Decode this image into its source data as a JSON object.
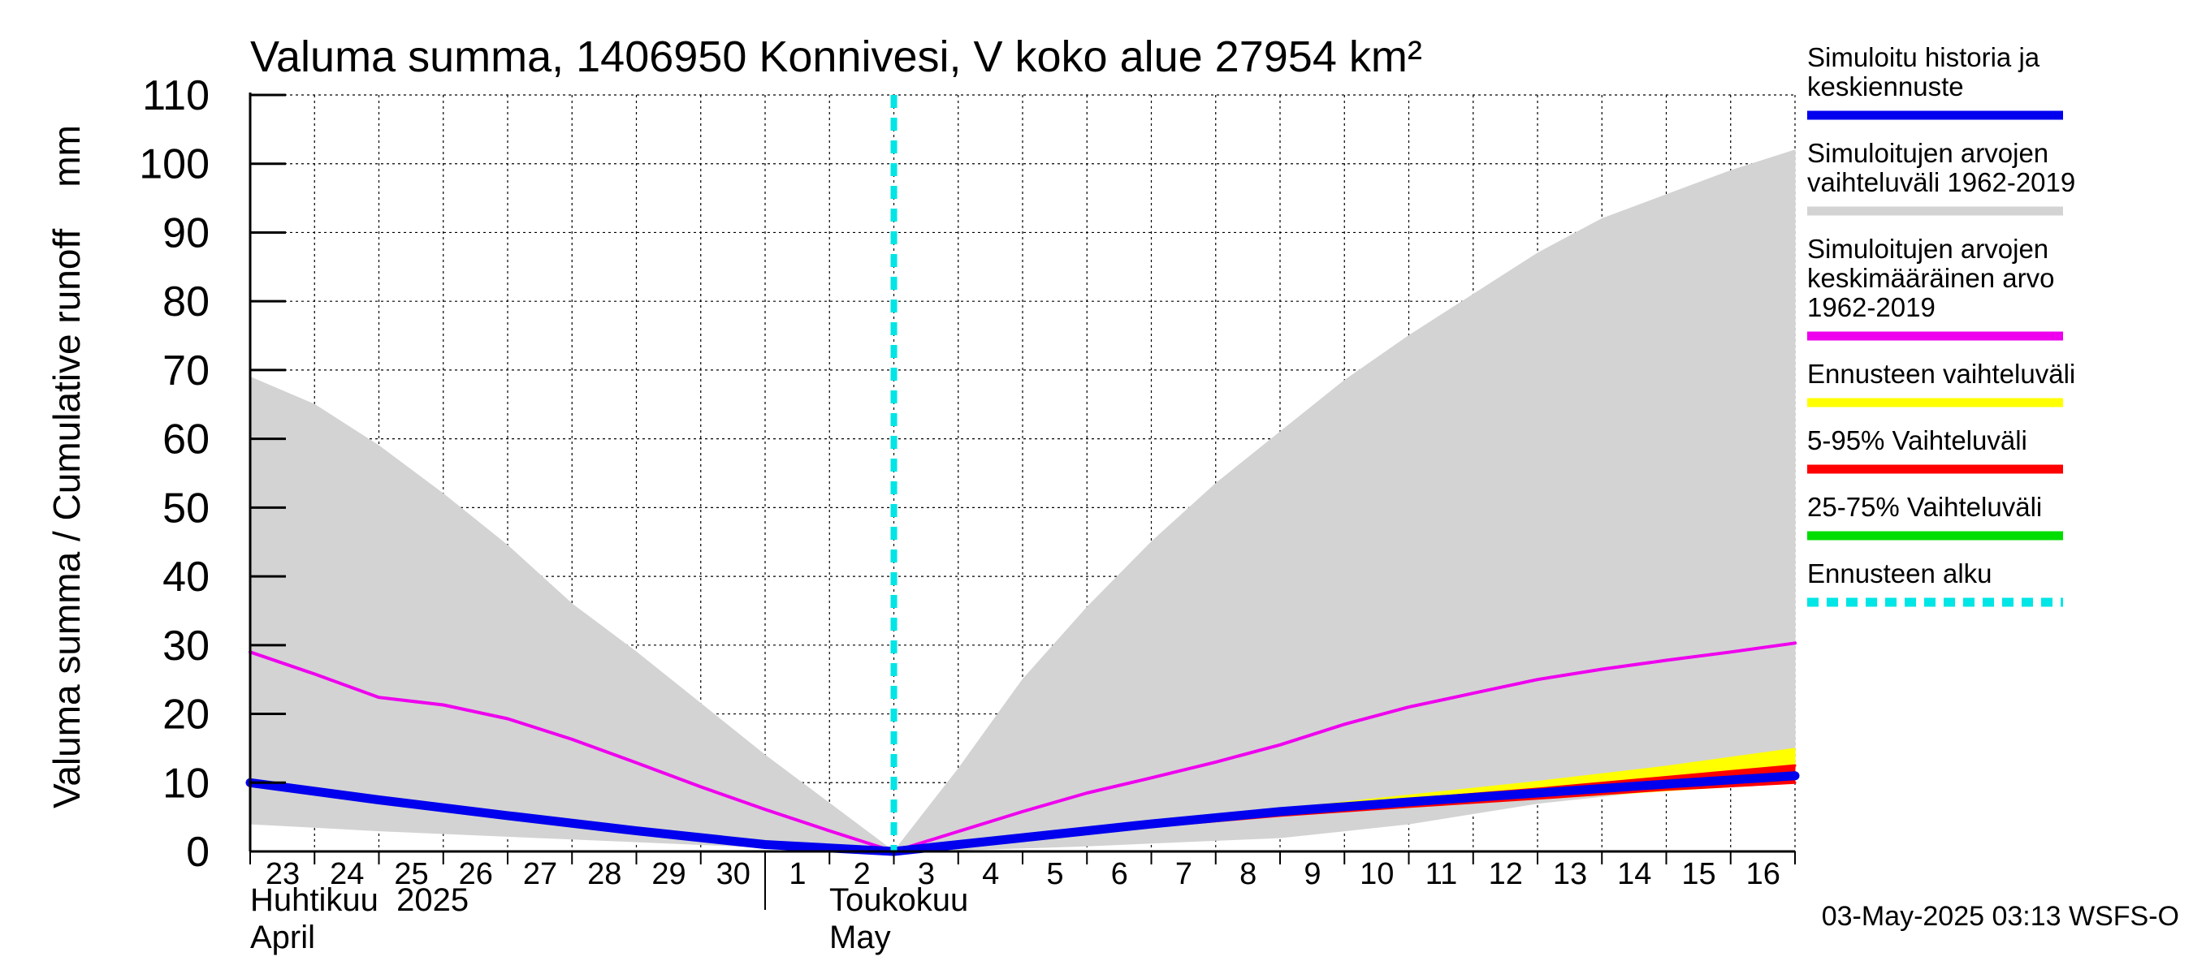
{
  "chart_data": {
    "type": "area",
    "title": "Valuma summa, 1406950 Konnivesi, V koko alue 27954 km²",
    "ylabel": "Valuma summa / Cumulative runoff    mm",
    "ylim": [
      0,
      110
    ],
    "yticks": [
      0,
      10,
      20,
      30,
      40,
      50,
      60,
      70,
      80,
      90,
      100,
      110
    ],
    "grid": true,
    "legend_position": "right",
    "x_tick_labels": [
      "23",
      "24",
      "25",
      "26",
      "27",
      "28",
      "29",
      "30",
      "1",
      "2",
      "3",
      "4",
      "5",
      "6",
      "7",
      "8",
      "9",
      "10",
      "11",
      "12",
      "13",
      "14",
      "15",
      "16"
    ],
    "month_labels": [
      {
        "line1": "Huhtikuu  2025",
        "line2": "April"
      },
      {
        "line1": "Toukokuu",
        "line2": "May"
      }
    ],
    "forecast_start": "2025-05-03",
    "series": [
      {
        "name": "Simuloitu historia ja keskiennuste",
        "color": "#0000ee",
        "x": [
          "2025-04-23",
          "2025-04-25",
          "2025-04-27",
          "2025-04-29",
          "2025-05-01",
          "2025-05-03",
          "2025-05-05",
          "2025-05-07",
          "2025-05-09",
          "2025-05-11",
          "2025-05-13",
          "2025-05-15",
          "2025-05-17"
        ],
        "y": [
          10,
          7.5,
          5.2,
          3.0,
          1.0,
          0,
          2.0,
          4.0,
          5.8,
          7.2,
          8.5,
          9.8,
          11.0
        ]
      },
      {
        "name": "Simuloitujen arvojen vaihteluväli 1962-2019",
        "color": "#d3d3d3",
        "x": [
          "2025-04-23",
          "2025-04-24",
          "2025-04-25",
          "2025-04-26",
          "2025-04-27",
          "2025-04-28",
          "2025-04-29",
          "2025-04-30",
          "2025-05-01",
          "2025-05-02",
          "2025-05-03",
          "2025-05-04",
          "2025-05-05",
          "2025-05-06",
          "2025-05-07",
          "2025-05-08",
          "2025-05-09",
          "2025-05-10",
          "2025-05-11",
          "2025-05-12",
          "2025-05-13",
          "2025-05-14",
          "2025-05-15",
          "2025-05-16",
          "2025-05-17"
        ],
        "y_low": [
          4,
          3.5,
          3.0,
          2.6,
          2.2,
          1.8,
          1.4,
          1.0,
          0.6,
          0.3,
          0,
          0.2,
          0.5,
          0.8,
          1.2,
          1.6,
          2.0,
          3.0,
          4.0,
          5.5,
          7.0,
          8.0,
          9.0,
          9.5,
          10.0
        ],
        "y_high": [
          69,
          65,
          59,
          52,
          44.5,
          36,
          29,
          21.5,
          14,
          7,
          0,
          12,
          25,
          35.5,
          45,
          53.5,
          61,
          68.5,
          75,
          81,
          87,
          92,
          95.5,
          99,
          102
        ]
      },
      {
        "name": "Simuloitujen arvojen keskimääräinen arvo 1962-2019",
        "color": "#ee00ee",
        "x": [
          "2025-04-23",
          "2025-04-24",
          "2025-04-25",
          "2025-04-26",
          "2025-04-27",
          "2025-04-28",
          "2025-04-29",
          "2025-04-30",
          "2025-05-01",
          "2025-05-02",
          "2025-05-03",
          "2025-05-04",
          "2025-05-05",
          "2025-05-06",
          "2025-05-07",
          "2025-05-08",
          "2025-05-09",
          "2025-05-10",
          "2025-05-11",
          "2025-05-12",
          "2025-05-13",
          "2025-05-14",
          "2025-05-15",
          "2025-05-16",
          "2025-05-17"
        ],
        "y": [
          29,
          25.8,
          22.4,
          21.3,
          19.3,
          16.3,
          12.9,
          9.4,
          6.1,
          3.0,
          0,
          2.9,
          5.8,
          8.5,
          10.7,
          13.0,
          15.5,
          18.5,
          21,
          23,
          25,
          26.5,
          27.8,
          29.0,
          30.3
        ]
      },
      {
        "name": "Ennusteen vaihteluväli",
        "color": "#ffff00",
        "x": [
          "2025-05-03",
          "2025-05-05",
          "2025-05-07",
          "2025-05-09",
          "2025-05-11",
          "2025-05-13",
          "2025-05-15",
          "2025-05-17"
        ],
        "y_low": [
          0,
          1.8,
          3.6,
          5.2,
          6.4,
          7.6,
          8.8,
          10.0
        ],
        "y_high": [
          0,
          2.2,
          4.4,
          6.2,
          8.2,
          10.2,
          12.4,
          15.0
        ]
      },
      {
        "name": "5-95% Vaihteluväli",
        "color": "#ff0000",
        "x": [
          "2025-05-03",
          "2025-05-05",
          "2025-05-07",
          "2025-05-09",
          "2025-05-11",
          "2025-05-13",
          "2025-05-15",
          "2025-05-17"
        ],
        "y_low": [
          0,
          1.8,
          3.6,
          5.2,
          6.5,
          7.7,
          9.0,
          10.0
        ],
        "y_high": [
          0,
          2.1,
          4.2,
          6.0,
          7.6,
          9.1,
          10.8,
          12.5
        ]
      },
      {
        "name": "25-75% Vaihteluväli",
        "color": "#00dd00",
        "x": [
          "2025-05-03",
          "2025-05-05",
          "2025-05-07",
          "2025-05-09",
          "2025-05-11",
          "2025-05-13",
          "2025-05-15",
          "2025-05-17"
        ],
        "y_low": [
          0,
          1.9,
          3.8,
          5.5,
          6.9,
          8.2,
          9.5,
          10.6
        ],
        "y_high": [
          0,
          2.1,
          4.1,
          5.9,
          7.4,
          8.8,
          10.1,
          11.4
        ]
      },
      {
        "name": "Ennusteen alku",
        "color": "#00e5e5",
        "style": "dashed-vertical"
      }
    ],
    "legend": [
      {
        "lines": [
          "Simuloitu historia ja",
          "keskiennuste"
        ],
        "color": "#0000ee"
      },
      {
        "lines": [
          "Simuloitujen arvojen",
          "vaihteluväli 1962-2019"
        ],
        "color": "#d3d3d3"
      },
      {
        "lines": [
          "Simuloitujen arvojen",
          "keskimääräinen arvo",
          "   1962-2019"
        ],
        "color": "#ee00ee"
      },
      {
        "lines": [
          "Ennusteen vaihteluväli"
        ],
        "color": "#ffff00"
      },
      {
        "lines": [
          "5-95% Vaihteluväli"
        ],
        "color": "#ff0000"
      },
      {
        "lines": [
          "25-75% Vaihteluväli"
        ],
        "color": "#00dd00"
      },
      {
        "lines": [
          "Ennusteen alku"
        ],
        "color": "#00e5e5",
        "dashed": true
      }
    ],
    "footer": "03-May-2025 03:13 WSFS-O"
  }
}
